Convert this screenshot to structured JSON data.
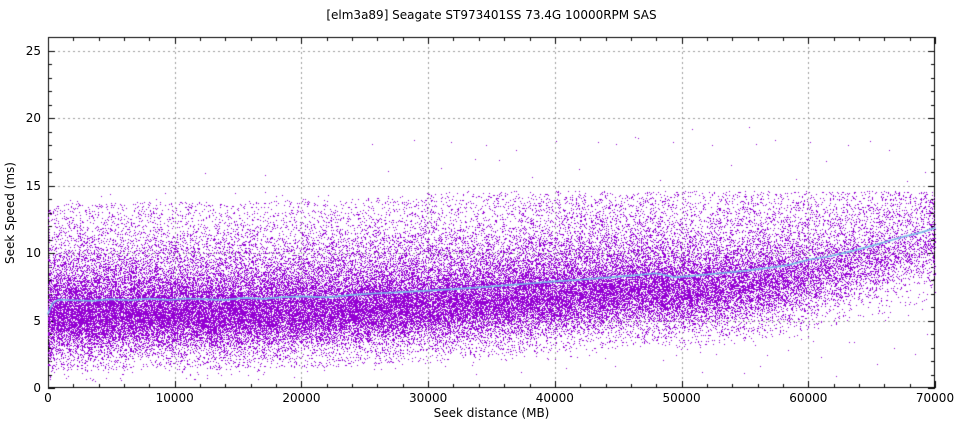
{
  "chart_data": {
    "type": "scatter",
    "title": "[elm3a89] Seagate ST973401SS 73.4G 10000RPM SAS",
    "xlabel": "Seek distance (MB)",
    "ylabel": "Seek Speed (ms)",
    "xlim": [
      0,
      70000
    ],
    "ylim": [
      0,
      26
    ],
    "xticks": [
      0,
      10000,
      20000,
      30000,
      40000,
      50000,
      60000,
      70000
    ],
    "yticks": [
      0,
      5,
      10,
      15,
      20,
      25
    ],
    "x_minor_step": 2000,
    "y_minor_step": 1,
    "grid": {
      "show": true,
      "style": "dashed",
      "at": "major-ticks"
    },
    "legend": {
      "show": false
    },
    "colors": {
      "background": "#ffffff",
      "border": "#000000",
      "grid": "#9e9e9e",
      "text": "#000000",
      "points": "#9400d3",
      "trend_line": "#79b8e8"
    },
    "series": [
      {
        "name": "seek-samples",
        "type": "scatter-cloud",
        "marker": "dot-1px",
        "count": 68000,
        "seed": 20240613,
        "x_density_knots": [
          [
            0,
            1.0
          ],
          [
            10000,
            0.97
          ],
          [
            20000,
            0.9
          ],
          [
            30000,
            0.86
          ],
          [
            40000,
            0.8
          ],
          [
            48000,
            0.74
          ],
          [
            55000,
            0.62
          ],
          [
            60000,
            0.45
          ],
          [
            64000,
            0.32
          ],
          [
            67000,
            0.25
          ],
          [
            70000,
            0.2
          ]
        ],
        "y_mixture": {
          "core": {
            "weight": 0.55,
            "mean_offset": -1.2,
            "sd": 1.3
          },
          "spread": {
            "weight": 0.3,
            "mean_offset": 0.8,
            "sd": 2.2
          },
          "tail": {
            "weight": 0.15,
            "uniform_offset": [
              -5.2,
              7.2
            ]
          },
          "y_min": 0.55,
          "y_max": 14.6
        }
      },
      {
        "name": "running-average",
        "type": "line",
        "width": 1.7,
        "points": [
          [
            0,
            5.5
          ],
          [
            350,
            6.25
          ],
          [
            800,
            6.55
          ],
          [
            2000,
            6.5
          ],
          [
            3500,
            6.45
          ],
          [
            5000,
            6.58
          ],
          [
            6500,
            6.5
          ],
          [
            8000,
            6.62
          ],
          [
            9500,
            6.52
          ],
          [
            11000,
            6.63
          ],
          [
            12500,
            6.57
          ],
          [
            14000,
            6.53
          ],
          [
            15500,
            6.68
          ],
          [
            17000,
            6.6
          ],
          [
            18500,
            6.73
          ],
          [
            20000,
            6.78
          ],
          [
            22000,
            6.72
          ],
          [
            24000,
            6.9
          ],
          [
            26000,
            7.02
          ],
          [
            28000,
            7.1
          ],
          [
            30000,
            7.22
          ],
          [
            32000,
            7.32
          ],
          [
            34000,
            7.46
          ],
          [
            36000,
            7.6
          ],
          [
            38000,
            7.74
          ],
          [
            40000,
            7.9
          ],
          [
            42000,
            8.02
          ],
          [
            44000,
            8.18
          ],
          [
            46000,
            8.32
          ],
          [
            48000,
            8.5
          ],
          [
            49500,
            8.2
          ],
          [
            51000,
            8.32
          ],
          [
            53000,
            8.5
          ],
          [
            55000,
            8.68
          ],
          [
            57000,
            8.92
          ],
          [
            58500,
            9.12
          ],
          [
            60000,
            9.5
          ],
          [
            61500,
            9.72
          ],
          [
            63000,
            10.05
          ],
          [
            64500,
            10.4
          ],
          [
            66000,
            10.8
          ],
          [
            67500,
            11.2
          ],
          [
            69000,
            11.55
          ],
          [
            70000,
            11.85
          ]
        ]
      }
    ],
    "outliers_high": [
      [
        12400,
        15.9
      ],
      [
        17100,
        15.8
      ],
      [
        25600,
        18.1
      ],
      [
        26800,
        16.1
      ],
      [
        28900,
        18.4
      ],
      [
        31000,
        16.3
      ],
      [
        31800,
        18.2
      ],
      [
        33700,
        17.0
      ],
      [
        34600,
        18.0
      ],
      [
        35600,
        16.9
      ],
      [
        36900,
        17.6
      ],
      [
        38200,
        15.6
      ],
      [
        40100,
        18.3
      ],
      [
        41900,
        16.2
      ],
      [
        43400,
        18.2
      ],
      [
        44800,
        18.1
      ],
      [
        46300,
        18.6
      ],
      [
        46600,
        18.5
      ],
      [
        48300,
        15.4
      ],
      [
        49300,
        18.2
      ],
      [
        50800,
        19.2
      ],
      [
        52400,
        18.0
      ],
      [
        53900,
        16.5
      ],
      [
        55300,
        19.3
      ],
      [
        55900,
        18.1
      ],
      [
        57400,
        18.4
      ],
      [
        59000,
        15.5
      ],
      [
        60100,
        18.2
      ],
      [
        61400,
        16.8
      ],
      [
        63100,
        18.0
      ],
      [
        64900,
        18.3
      ],
      [
        66400,
        17.6
      ],
      [
        67800,
        15.3
      ],
      [
        69200,
        16.0
      ]
    ],
    "outliers_low": [
      [
        51600,
        1.2
      ],
      [
        54900,
        1.1
      ],
      [
        56200,
        1.6
      ],
      [
        58400,
        2.8
      ],
      [
        59400,
        3.6
      ],
      [
        61000,
        2.3
      ],
      [
        62200,
        0.9
      ],
      [
        63600,
        3.4
      ],
      [
        65400,
        1.8
      ],
      [
        66800,
        3.0
      ],
      [
        68400,
        2.5
      ],
      [
        69400,
        4.0
      ]
    ]
  }
}
